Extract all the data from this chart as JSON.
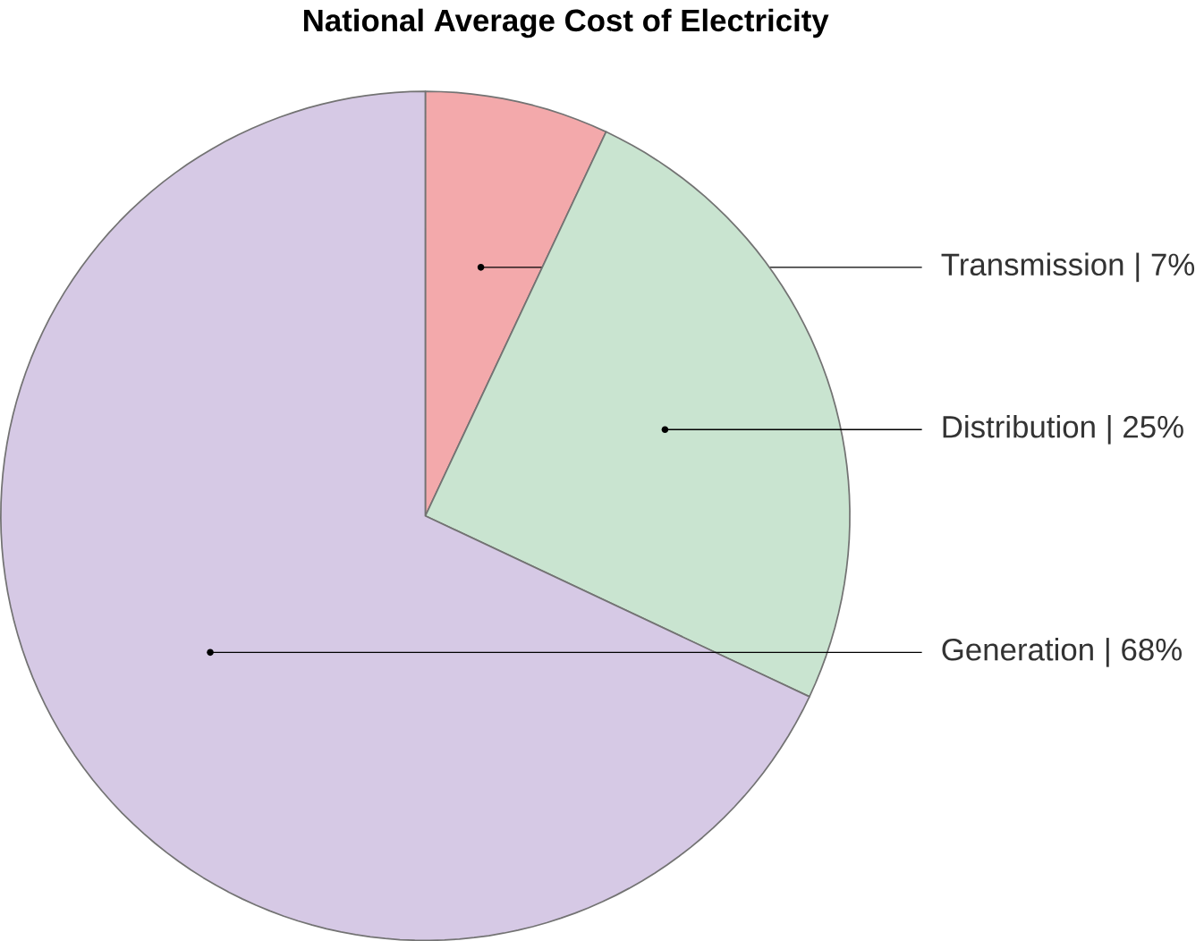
{
  "chart_data": {
    "type": "pie",
    "title": "National Average Cost of Electricity",
    "categories": [
      "Transmission",
      "Distribution",
      "Generation"
    ],
    "values": [
      7,
      25,
      68
    ],
    "value_labels": [
      "| 7%",
      "| 25%",
      "| 68%"
    ],
    "colors": [
      "#f3a9ab",
      "#c9e4d0",
      "#d6c9e5"
    ]
  }
}
